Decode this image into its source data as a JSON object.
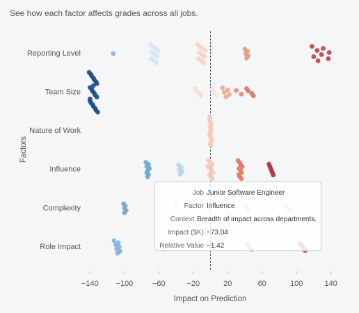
{
  "chart_data": {
    "type": "strip",
    "subtitle": "See how each factor affects grades across all jobs.",
    "xlabel": "Impact on Prediction",
    "ylabel": "Factors",
    "xlim": [
      -150,
      150
    ],
    "xticks": [
      {
        "value": -140,
        "label": "−140"
      },
      {
        "value": -100,
        "label": "−100"
      },
      {
        "value": -60,
        "label": "−60"
      },
      {
        "value": -20,
        "label": "−20"
      },
      20,
      60,
      100,
      140
    ],
    "reference_line": 0,
    "factors": [
      {
        "name": "Reporting Level",
        "clusters": [
          {
            "color": "#7fb2dc",
            "values": [
              -113
            ]
          },
          {
            "color": "#d6e6f4",
            "values": [
              -70,
              -69,
              -68,
              -67,
              -66,
              -65,
              -64,
              -63,
              -62,
              -61
            ]
          },
          {
            "color": "#f5d5c6",
            "values": [
              -15,
              -14,
              -13,
              -12,
              -11,
              -10,
              -9,
              -8,
              -7,
              -6
            ]
          },
          {
            "color": "#e49a80",
            "values": [
              40,
              41,
              42,
              43,
              44
            ]
          },
          {
            "color": "#c0413f",
            "values": [
              118,
              120,
              124,
              125,
              129,
              131,
              137,
              138
            ]
          }
        ]
      },
      {
        "name": "Team Size",
        "clusters": [
          {
            "color": "#1e4f8a",
            "values": [
              -141,
              -140,
              -140,
              -139,
              -139,
              -138,
              -138,
              -137,
              -137,
              -136,
              -136,
              -135,
              -135,
              -134,
              -134,
              -133,
              -133,
              -132,
              -132,
              -131,
              -140,
              -136
            ]
          },
          {
            "color": "#f8ddd0",
            "values": [
              -18,
              -16,
              -13,
              -11
            ]
          },
          {
            "color": "#f9e3d8",
            "values": [
              2,
              4,
              6
            ]
          },
          {
            "color": "#eea68e",
            "values": [
              14,
              16,
              18,
              20,
              22
            ]
          },
          {
            "color": "#e38d74",
            "values": [
              30,
              36
            ]
          },
          {
            "color": "#d9775f",
            "values": [
              42,
              44,
              48,
              50
            ]
          }
        ]
      },
      {
        "name": "Nature of Work",
        "clusters": [
          {
            "color": "#f6cbb8",
            "values": [
              -1,
              -0.5,
              0,
              0.5,
              1,
              -1,
              -0.5,
              0,
              0.5,
              1,
              -1,
              0,
              1,
              -0.5,
              0.5,
              0
            ]
          }
        ]
      },
      {
        "name": "Influence",
        "clusters": [
          {
            "color": "#6ea6d6",
            "values": [
              -75,
              -74,
              -74,
              -73.04,
              -73,
              -72,
              -72,
              -71
            ]
          },
          {
            "color": "#b8d3ea",
            "values": [
              -37,
              -36,
              -35,
              -34,
              -33
            ]
          },
          {
            "color": "#f5c8b2",
            "values": [
              -2,
              -1,
              0,
              0,
              1,
              1,
              2,
              2,
              3,
              -3
            ]
          },
          {
            "color": "#e07c62",
            "values": [
              32,
              33,
              33,
              34,
              34,
              35,
              35,
              36,
              36,
              37
            ]
          },
          {
            "color": "#b5333a",
            "values": [
              68,
              69,
              70,
              71,
              72,
              73
            ]
          }
        ]
      },
      {
        "name": "Complexity",
        "clusters": [
          {
            "color": "#6ea6d6",
            "values": [
              -101,
              -100,
              -100,
              -99,
              -98
            ]
          },
          {
            "color": "#f0d0c0",
            "values": [
              -40,
              -20,
              0,
              20
            ]
          },
          {
            "color": "#f1c7b7",
            "values": [
              42,
              44
            ]
          },
          {
            "color": "#f3cbbd",
            "values": [
              88,
              90,
              92
            ]
          }
        ]
      },
      {
        "name": "Role Impact",
        "clusters": [
          {
            "color": "#7fb2dc",
            "values": [
              -112,
              -110,
              -109,
              -108,
              -107,
              -106,
              -105
            ]
          },
          {
            "color": "#c9ddef",
            "values": [
              -57,
              -55,
              -53
            ]
          },
          {
            "color": "#ee9f86",
            "values": [
              42,
              45,
              48
            ]
          },
          {
            "color": "#c84a47",
            "values": [
              104,
              106,
              108,
              110
            ]
          }
        ]
      }
    ],
    "tooltip": {
      "rows": [
        {
          "label": "Job",
          "value": "Junior Software Engineer"
        },
        {
          "label": "Factor",
          "value": "Influence"
        },
        {
          "label": "Context",
          "value": "Breadth of impact across departments."
        },
        {
          "label": "Impact ($K)",
          "value": "−73.04"
        },
        {
          "label": "Relative Value",
          "value": "−1.42"
        }
      ]
    }
  }
}
